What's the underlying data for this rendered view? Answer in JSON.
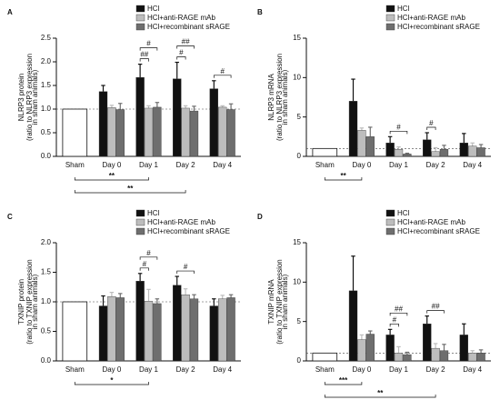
{
  "chart_data": [
    {
      "type": "bar",
      "label": "A",
      "ylabel": "NLRP3 protein",
      "ylabel_note": [
        "(ratio to NLRP3 expression",
        "in sham animals)"
      ],
      "categories": [
        "Sham",
        "Day 0",
        "Day 1",
        "Day 2",
        "Day 4"
      ],
      "sham": {
        "value": 1,
        "color": "#ffffff"
      },
      "series": [
        {
          "name": "HCl",
          "color": "#111111",
          "values": [
            null,
            1.37,
            1.67,
            1.64,
            1.43
          ],
          "errors": [
            null,
            0.13,
            0.28,
            0.35,
            0.17
          ]
        },
        {
          "name": "HCl+anti-RAGE mAb",
          "color": "#bdbdbd",
          "values": [
            null,
            1.03,
            1.02,
            1.02,
            1.04
          ],
          "errors": [
            null,
            0.05,
            0.05,
            0.05,
            0.03
          ]
        },
        {
          "name": "HCl+recombinant sRAGE",
          "color": "#6e6e6e",
          "values": [
            null,
            0.99,
            1.04,
            0.96,
            0.99
          ],
          "errors": [
            null,
            0.13,
            0.1,
            0.1,
            0.12
          ]
        }
      ],
      "ylim": [
        0,
        2.5
      ],
      "yticks": [
        {
          "value": 0,
          "label": "0.0"
        },
        {
          "value": 0.5,
          "label": "0.5"
        },
        {
          "value": 1,
          "label": "1.0"
        },
        {
          "value": 1.5,
          "label": "1.5"
        },
        {
          "value": 2,
          "label": "2.0"
        },
        {
          "value": 2.5,
          "label": "2.5"
        }
      ],
      "annotations": [
        "#",
        "##",
        "##",
        "#",
        "#"
      ],
      "below_annotations": [
        "**",
        "**"
      ]
    },
    {
      "type": "bar",
      "label": "B",
      "ylabel": "NLRP3 mRNA",
      "ylabel_note": [
        "(ratio to NLRP3 expression",
        "in sham animals)"
      ],
      "categories": [
        "Sham",
        "Day 0",
        "Day 1",
        "Day 2",
        "Day 4"
      ],
      "sham": {
        "value": 1,
        "color": "#ffffff"
      },
      "series": [
        {
          "name": "HCl",
          "color": "#111111",
          "values": [
            null,
            7.0,
            1.7,
            2.1,
            1.7
          ],
          "errors": [
            null,
            2.8,
            0.8,
            0.9,
            1.2
          ]
        },
        {
          "name": "HCl+anti-RAGE mAb",
          "color": "#bdbdbd",
          "values": [
            null,
            3.3,
            0.9,
            0.6,
            1.3
          ],
          "errors": [
            null,
            0.3,
            0.3,
            0.5,
            0.4
          ]
        },
        {
          "name": "HCl+recombinant sRAGE",
          "color": "#6e6e6e",
          "values": [
            null,
            2.5,
            0.3,
            0.9,
            1.1
          ],
          "errors": [
            null,
            1.2,
            0.1,
            0.5,
            0.4
          ]
        }
      ],
      "ylim": [
        0,
        15
      ],
      "yticks": [
        0,
        5,
        10,
        15
      ],
      "annotations": [
        "#",
        "#"
      ],
      "below_annotations": [
        "**"
      ]
    },
    {
      "type": "bar",
      "label": "C",
      "ylabel": "TXNIP protein",
      "ylabel_note": [
        "(ratio to TXNIP expression",
        "in sham animals)"
      ],
      "categories": [
        "Sham",
        "Day 0",
        "Day 1",
        "Day 2",
        "Day 4"
      ],
      "sham": {
        "value": 1,
        "color": "#ffffff"
      },
      "series": [
        {
          "name": "HCl",
          "color": "#111111",
          "values": [
            null,
            0.93,
            1.35,
            1.28,
            0.93
          ],
          "errors": [
            null,
            0.17,
            0.13,
            0.15,
            0.12
          ]
        },
        {
          "name": "HCl+anti-RAGE mAb",
          "color": "#bdbdbd",
          "values": [
            null,
            1.09,
            1.01,
            1.12,
            1.05
          ],
          "errors": [
            null,
            0.07,
            0.2,
            0.1,
            0.06
          ]
        },
        {
          "name": "HCl+recombinant sRAGE",
          "color": "#6e6e6e",
          "values": [
            null,
            1.07,
            0.97,
            1.05,
            1.07
          ],
          "errors": [
            null,
            0.07,
            0.08,
            0.07,
            0.05
          ]
        }
      ],
      "ylim": [
        0,
        2
      ],
      "yticks": [
        {
          "value": 0,
          "label": "0.0"
        },
        {
          "value": 0.5,
          "label": "0.5"
        },
        {
          "value": 1,
          "label": "1.0"
        },
        {
          "value": 1.5,
          "label": "1.5"
        },
        {
          "value": 2,
          "label": "2.0"
        }
      ],
      "annotations": [
        "#",
        "#",
        "#"
      ],
      "below_annotations": [
        "*"
      ]
    },
    {
      "type": "bar",
      "label": "D",
      "ylabel": "TXNIP mRNA",
      "ylabel_note": [
        "(ratio to TXNIP expression",
        "in sham animals)"
      ],
      "categories": [
        "Sham",
        "Day 0",
        "Day 1",
        "Day 2",
        "Day 4"
      ],
      "sham": {
        "value": 1,
        "color": "#ffffff"
      },
      "series": [
        {
          "name": "HCl",
          "color": "#111111",
          "values": [
            null,
            8.9,
            3.3,
            4.7,
            3.3
          ],
          "errors": [
            null,
            4.4,
            0.7,
            1.0,
            1.4
          ]
        },
        {
          "name": "HCl+anti-RAGE mAb",
          "color": "#bdbdbd",
          "values": [
            null,
            2.7,
            1.0,
            1.6,
            1.0
          ],
          "errors": [
            null,
            0.6,
            0.8,
            0.6,
            0.3
          ]
        },
        {
          "name": "HCl+recombinant sRAGE",
          "color": "#6e6e6e",
          "values": [
            null,
            3.4,
            0.8,
            1.3,
            1.0
          ],
          "errors": [
            null,
            0.4,
            0.3,
            0.8,
            0.4
          ]
        }
      ],
      "ylim": [
        0,
        15
      ],
      "yticks": [
        0,
        5,
        10,
        15
      ],
      "annotations": [
        "#",
        "##",
        "##"
      ],
      "below_annotations": [
        "***",
        "**"
      ]
    }
  ]
}
